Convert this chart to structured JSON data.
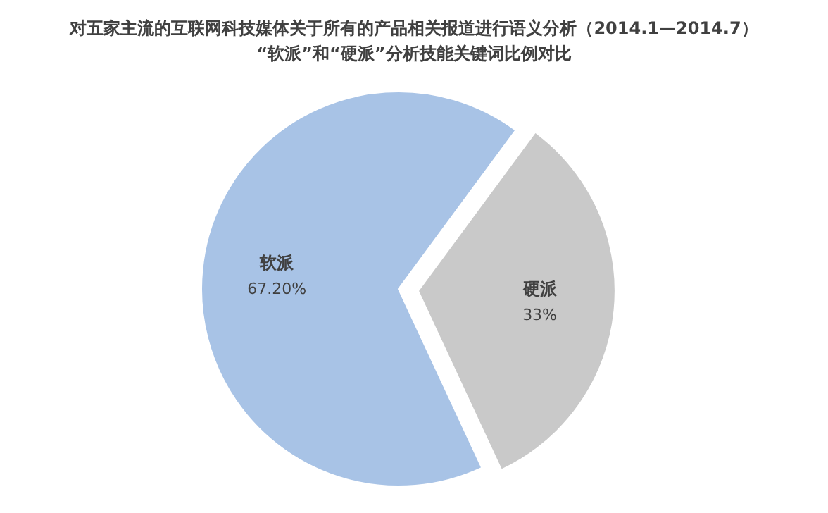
{
  "chart_data": {
    "type": "pie",
    "title": "对五家主流的互联网科技媒体关于所有的产品相关报道进行语义分析（2014.1—2014.7）",
    "subtitle": "“软派”和“硬派”分析技能关键词比例对比",
    "categories": [
      "软派",
      "硬派"
    ],
    "values": [
      67.2,
      33
    ],
    "value_labels": [
      "67.20%",
      "33%"
    ],
    "colors": [
      "#a8c3e6",
      "#c9c9c9"
    ]
  }
}
